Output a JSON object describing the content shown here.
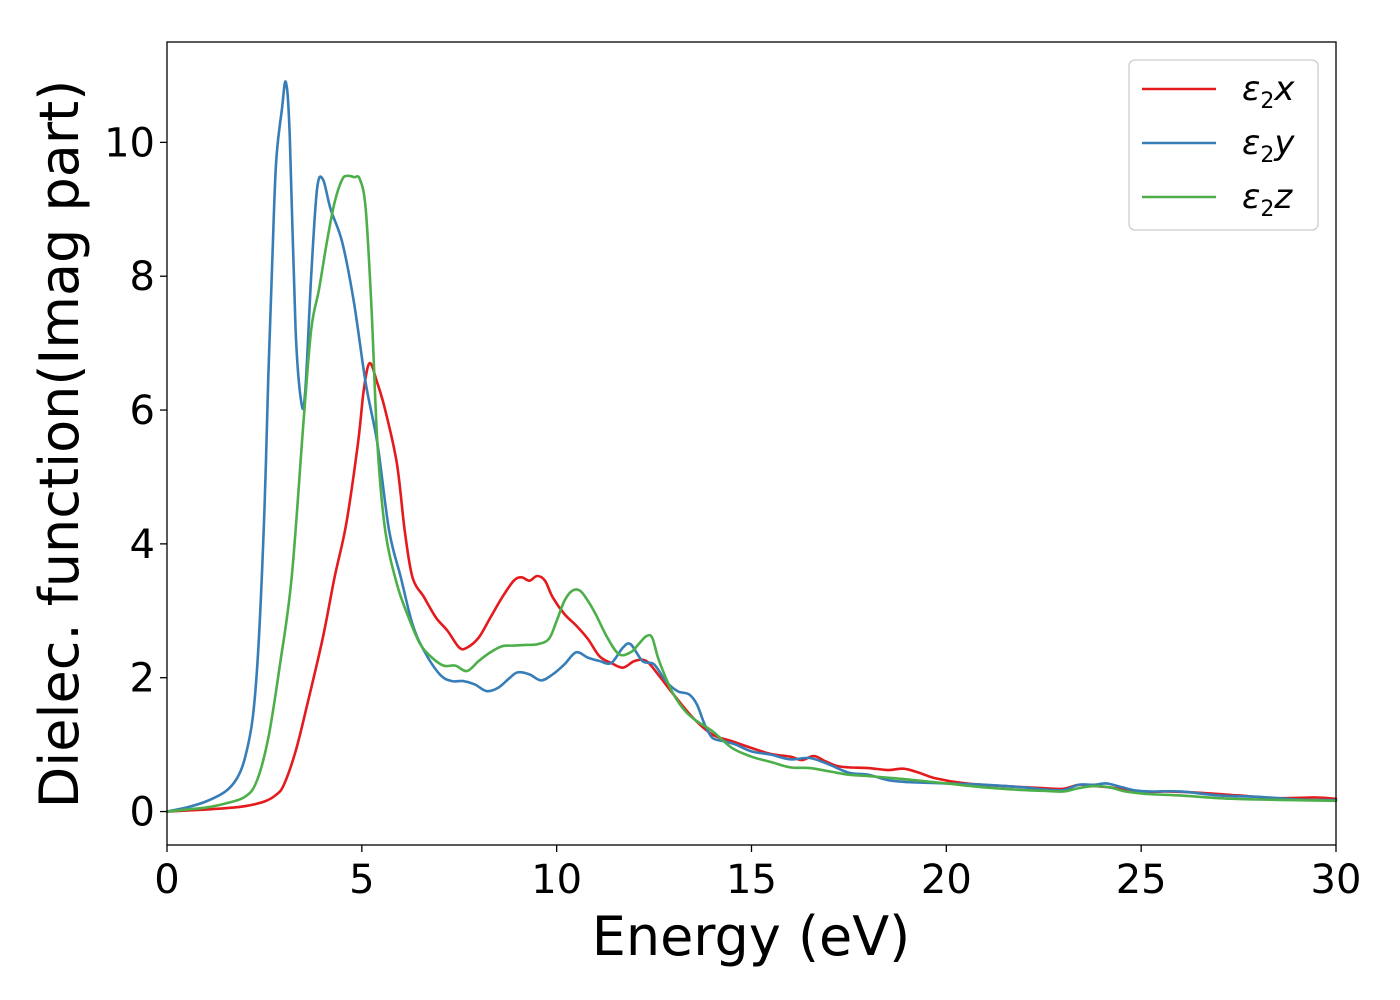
{
  "chart_data": {
    "type": "line",
    "xlabel": "Energy (eV)",
    "ylabel": "Dielec. function(Imag part)",
    "xlim": [
      0,
      30
    ],
    "ylim": [
      -0.5,
      11.5
    ],
    "xticks": [
      0,
      5,
      10,
      15,
      20,
      25,
      30
    ],
    "yticks": [
      0,
      2,
      4,
      6,
      8,
      10
    ],
    "grid": false,
    "legend_position": "top-right",
    "series": [
      {
        "name": "ε2x",
        "legend_base": "ε",
        "legend_sub": "2",
        "legend_var": "x",
        "color": "#e41a1c",
        "x": [
          0,
          1,
          1.5,
          2,
          2.5,
          2.8,
          3,
          3.3,
          3.6,
          4,
          4.3,
          4.6,
          4.9,
          5.05,
          5.2,
          5.4,
          5.6,
          5.9,
          6.1,
          6.3,
          6.6,
          6.9,
          7.2,
          7.5,
          7.7,
          8.0,
          8.3,
          8.6,
          8.9,
          9.1,
          9.3,
          9.5,
          9.7,
          9.9,
          10.2,
          10.5,
          10.8,
          11.1,
          11.4,
          11.7,
          12.0,
          12.3,
          12.6,
          13.0,
          13.5,
          14.0,
          14.5,
          15.0,
          15.5,
          16.0,
          16.3,
          16.6,
          16.9,
          17.2,
          17.5,
          18.0,
          18.5,
          18.9,
          19.3,
          19.7,
          20.5,
          21.5,
          22.5,
          23.0,
          23.4,
          23.8,
          24.2,
          24.6,
          25.0,
          25.6,
          26.5,
          27.5,
          28.5,
          29.5,
          30
        ],
        "values": [
          0.0,
          0.03,
          0.05,
          0.08,
          0.15,
          0.25,
          0.4,
          0.9,
          1.6,
          2.6,
          3.5,
          4.3,
          5.5,
          6.3,
          6.7,
          6.4,
          6.0,
          5.2,
          4.2,
          3.5,
          3.2,
          2.9,
          2.7,
          2.45,
          2.45,
          2.6,
          2.9,
          3.2,
          3.45,
          3.5,
          3.45,
          3.52,
          3.45,
          3.2,
          2.95,
          2.78,
          2.58,
          2.32,
          2.22,
          2.15,
          2.25,
          2.25,
          2.05,
          1.75,
          1.4,
          1.15,
          1.05,
          0.95,
          0.86,
          0.82,
          0.77,
          0.83,
          0.75,
          0.68,
          0.66,
          0.65,
          0.62,
          0.64,
          0.58,
          0.5,
          0.42,
          0.38,
          0.35,
          0.34,
          0.4,
          0.38,
          0.36,
          0.32,
          0.28,
          0.3,
          0.28,
          0.24,
          0.2,
          0.21,
          0.19
        ]
      },
      {
        "name": "ε2y",
        "legend_base": "ε",
        "legend_sub": "2",
        "legend_var": "y",
        "color": "#377eb8",
        "x": [
          0,
          0.5,
          1,
          1.5,
          1.8,
          2.0,
          2.2,
          2.35,
          2.5,
          2.6,
          2.7,
          2.8,
          2.95,
          3.05,
          3.15,
          3.3,
          3.45,
          3.55,
          3.7,
          3.85,
          4.0,
          4.2,
          4.5,
          4.8,
          5.1,
          5.4,
          5.7,
          6.0,
          6.3,
          6.6,
          7.0,
          7.3,
          7.6,
          7.9,
          8.2,
          8.5,
          8.8,
          9.0,
          9.3,
          9.6,
          9.9,
          10.2,
          10.5,
          10.8,
          11.1,
          11.4,
          11.7,
          11.9,
          12.2,
          12.5,
          12.8,
          13.1,
          13.4,
          13.6,
          13.8,
          14.0,
          14.3,
          14.6,
          15.0,
          15.5,
          16.0,
          16.5,
          17.0,
          17.5,
          18.0,
          18.5,
          19.0,
          19.5,
          20.0,
          21.0,
          22.0,
          22.5,
          23.0,
          23.4,
          23.8,
          24.1,
          24.4,
          24.8,
          25.2,
          26.0,
          27.0,
          28.0,
          29.0,
          30.0
        ],
        "values": [
          0.0,
          0.06,
          0.15,
          0.3,
          0.5,
          0.8,
          1.4,
          2.5,
          4.5,
          6.5,
          8.2,
          9.7,
          10.5,
          10.9,
          10.1,
          7.2,
          6.1,
          6.3,
          8.0,
          9.3,
          9.45,
          9.0,
          8.5,
          7.6,
          6.4,
          5.5,
          4.2,
          3.5,
          2.8,
          2.4,
          2.05,
          1.95,
          1.95,
          1.9,
          1.8,
          1.85,
          2.0,
          2.08,
          2.05,
          1.96,
          2.05,
          2.2,
          2.38,
          2.3,
          2.25,
          2.22,
          2.45,
          2.5,
          2.25,
          2.2,
          1.95,
          1.8,
          1.75,
          1.6,
          1.3,
          1.1,
          1.05,
          1.0,
          0.9,
          0.85,
          0.78,
          0.8,
          0.7,
          0.58,
          0.55,
          0.47,
          0.44,
          0.43,
          0.42,
          0.4,
          0.36,
          0.33,
          0.32,
          0.4,
          0.4,
          0.42,
          0.38,
          0.32,
          0.3,
          0.3,
          0.24,
          0.22,
          0.18,
          0.17
        ]
      },
      {
        "name": "ε2z",
        "legend_base": "ε",
        "legend_sub": "2",
        "legend_var": "z",
        "color": "#4daf4a",
        "x": [
          0,
          0.5,
          1,
          1.5,
          2.0,
          2.3,
          2.6,
          2.9,
          3.2,
          3.5,
          3.7,
          3.9,
          4.1,
          4.3,
          4.5,
          4.65,
          4.8,
          4.95,
          5.1,
          5.25,
          5.4,
          5.6,
          5.9,
          6.2,
          6.5,
          6.8,
          7.1,
          7.4,
          7.7,
          8.0,
          8.3,
          8.6,
          8.9,
          9.2,
          9.5,
          9.8,
          10.0,
          10.2,
          10.4,
          10.6,
          10.8,
          11.0,
          11.3,
          11.6,
          11.9,
          12.1,
          12.3,
          12.45,
          12.6,
          12.8,
          13.0,
          13.3,
          13.6,
          14.0,
          14.5,
          15.0,
          15.5,
          16.0,
          16.5,
          17.0,
          17.5,
          18.0,
          19.0,
          20.0,
          21.0,
          22.0,
          22.5,
          23.0,
          23.4,
          23.8,
          24.2,
          24.6,
          25.2,
          26.0,
          27.0,
          28.0,
          29.0,
          30.0
        ],
        "values": [
          0.0,
          0.03,
          0.06,
          0.12,
          0.22,
          0.45,
          1.1,
          2.2,
          3.5,
          5.8,
          7.2,
          7.8,
          8.5,
          9.1,
          9.45,
          9.5,
          9.48,
          9.45,
          9.0,
          7.5,
          5.5,
          4.2,
          3.4,
          2.9,
          2.5,
          2.3,
          2.18,
          2.18,
          2.1,
          2.25,
          2.38,
          2.47,
          2.48,
          2.49,
          2.5,
          2.58,
          2.85,
          3.15,
          3.3,
          3.3,
          3.15,
          2.95,
          2.6,
          2.35,
          2.38,
          2.5,
          2.62,
          2.6,
          2.3,
          2.0,
          1.75,
          1.5,
          1.35,
          1.2,
          0.95,
          0.82,
          0.74,
          0.66,
          0.65,
          0.6,
          0.55,
          0.53,
          0.48,
          0.42,
          0.36,
          0.32,
          0.31,
          0.3,
          0.35,
          0.38,
          0.36,
          0.3,
          0.26,
          0.24,
          0.2,
          0.18,
          0.17,
          0.16
        ]
      }
    ]
  }
}
